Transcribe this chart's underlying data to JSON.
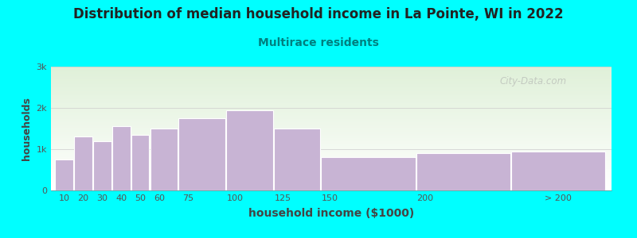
{
  "title": "Distribution of median household income in La Pointe, WI in 2022",
  "subtitle": "Multirace residents",
  "xlabel": "household income ($1000)",
  "ylabel": "households",
  "background_color": "#00FFFF",
  "plot_bg_top": "#dff0d8",
  "plot_bg_bottom": "#ffffff",
  "bar_color": "#c8b4d4",
  "bar_edge_color": "#ffffff",
  "title_fontsize": 12,
  "subtitle_fontsize": 10,
  "subtitle_color": "#008080",
  "bar_widths": [
    10,
    10,
    10,
    10,
    10,
    15,
    25,
    25,
    25,
    50,
    50,
    50
  ],
  "bar_lefts": [
    5,
    15,
    25,
    35,
    45,
    55,
    70,
    95,
    120,
    145,
    195,
    245
  ],
  "values": [
    750,
    1300,
    1200,
    1550,
    1350,
    1500,
    1750,
    1950,
    1500,
    800,
    900,
    950
  ],
  "yticks": [
    0,
    1000,
    2000,
    3000
  ],
  "ytick_labels": [
    "0",
    "1k",
    "2k",
    "3k"
  ],
  "ylim": [
    0,
    3000
  ],
  "xlim": [
    3,
    298
  ],
  "xtick_positions": [
    10,
    20,
    30,
    40,
    50,
    60,
    75,
    100,
    125,
    150,
    200,
    270
  ],
  "xtick_labels": [
    "10",
    "20",
    "30",
    "40",
    "50",
    "60",
    "75",
    "100",
    "125",
    "150",
    "200",
    "> 200"
  ],
  "watermark": "City-Data.com"
}
